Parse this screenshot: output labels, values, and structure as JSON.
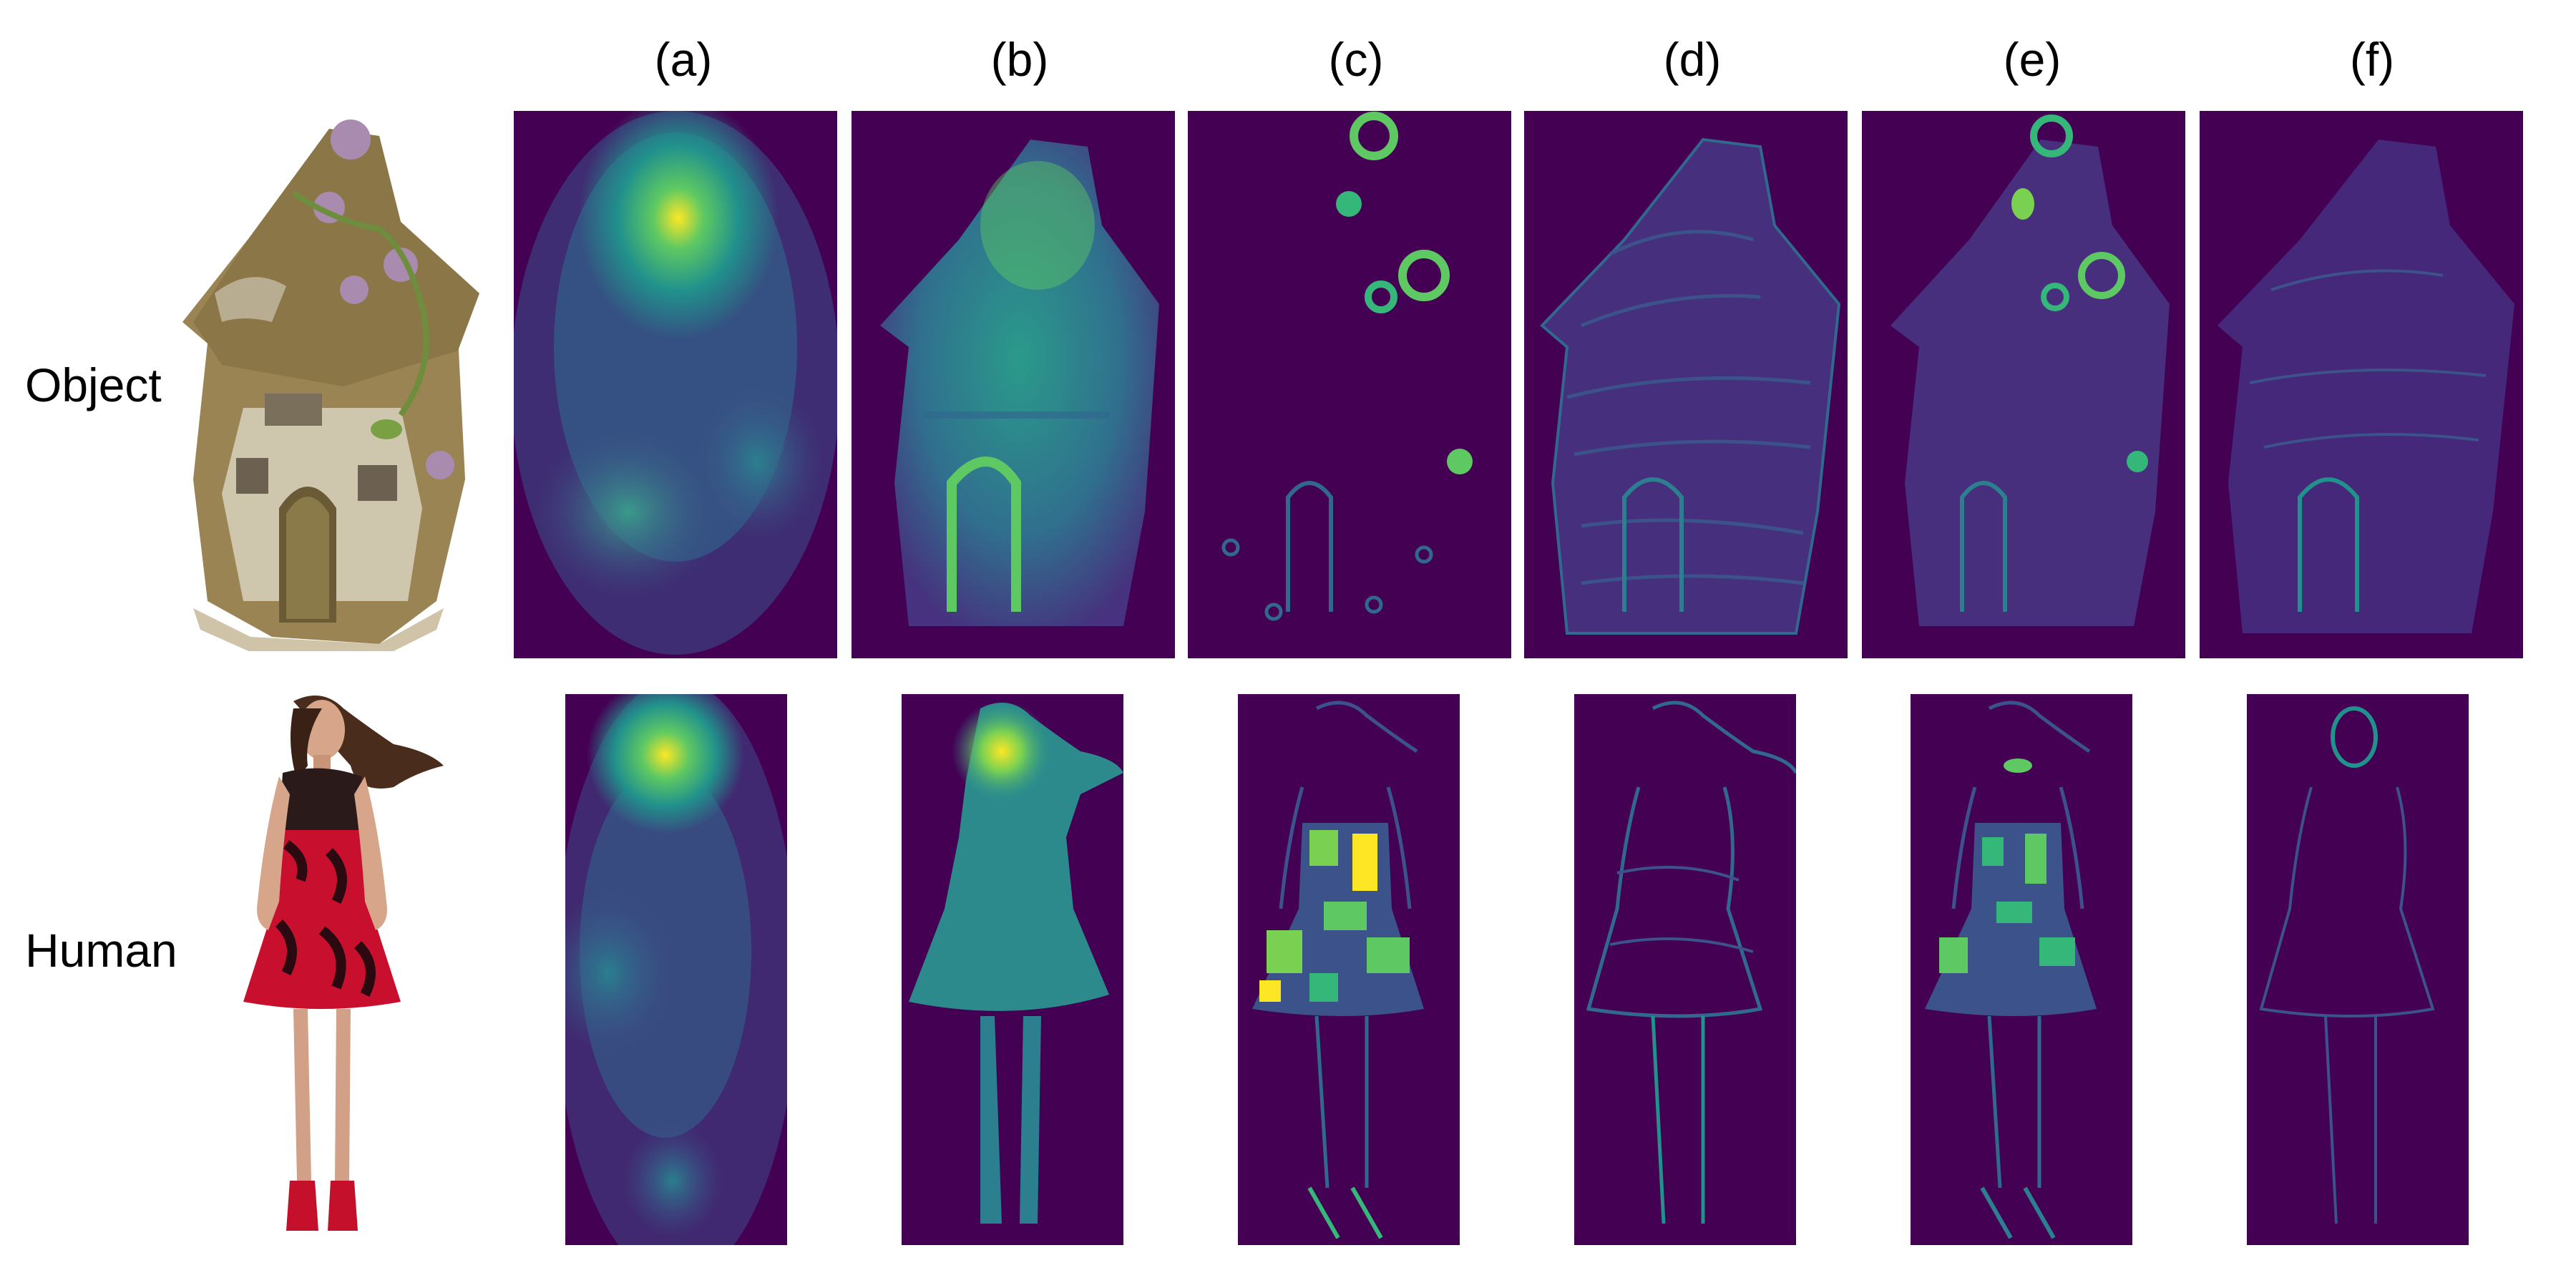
{
  "columns": [
    "(a)",
    "(b)",
    "(c)",
    "(d)",
    "(e)",
    "(f)"
  ],
  "rows": [
    "Object",
    "Human"
  ],
  "colors": {
    "viridis_dark": "#440154",
    "viridis_blue": "#3b528b",
    "viridis_teal": "#21918c",
    "viridis_green": "#5ec962",
    "viridis_yellow": "#fde725"
  }
}
